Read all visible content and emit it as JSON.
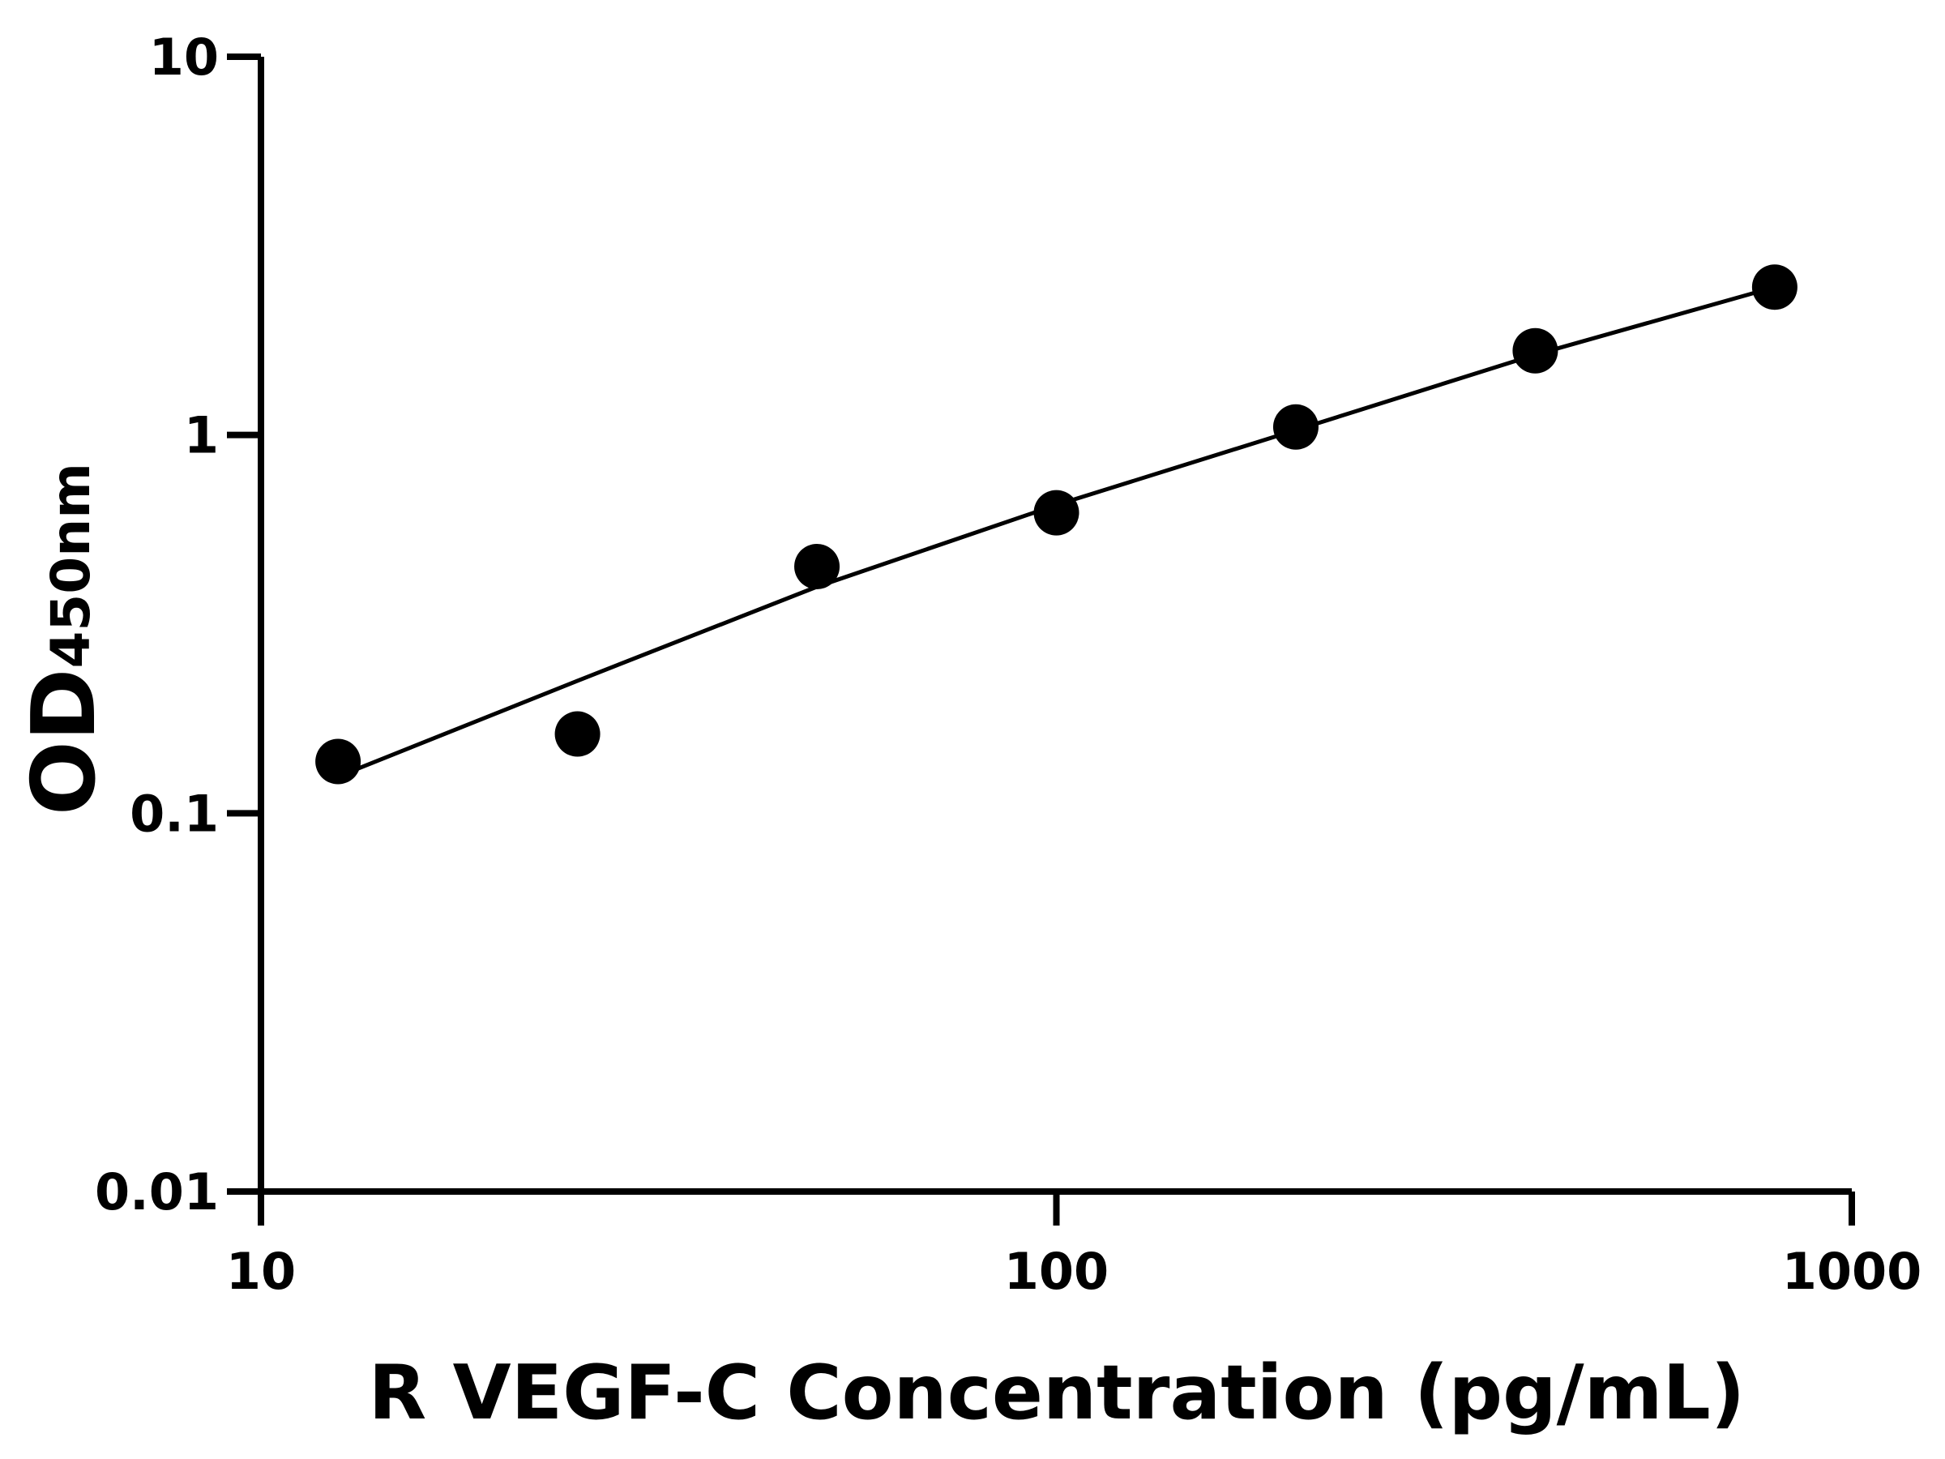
{
  "chart_data": {
    "type": "scatter",
    "xlabel": "R VEGF-C Concentration (pg/mL)",
    "ylabel": "OD",
    "ylabel_subscript": "450nm",
    "x": [
      12.5,
      25,
      50,
      100,
      200,
      400,
      800
    ],
    "values": [
      0.137,
      0.162,
      0.449,
      0.623,
      1.05,
      1.67,
      2.46
    ],
    "color": "#000000",
    "fit": {
      "x": [
        12.5,
        25,
        50,
        100,
        200,
        400,
        800
      ],
      "values": [
        0.125,
        0.224,
        0.397,
        0.653,
        1.03,
        1.63,
        2.46
      ],
      "color": "#000000"
    },
    "xscale": "log",
    "yscale": "log",
    "xlim": [
      10,
      1000
    ],
    "xticks": [
      10,
      100,
      1000
    ],
    "ylim": [
      0.01,
      10
    ],
    "yticks": [
      0.01,
      0.1,
      1,
      10
    ],
    "grid": false
  }
}
